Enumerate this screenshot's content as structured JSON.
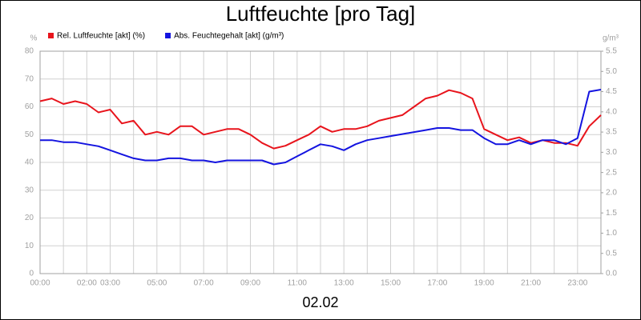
{
  "chart_data": {
    "type": "line",
    "title": "Luftfeuchte [pro Tag]",
    "subtitle": "02.02",
    "y_unit": "%",
    "y2_unit": "g/m³",
    "x": [
      0,
      0.5,
      1,
      1.5,
      2,
      2.5,
      3,
      3.5,
      4,
      4.5,
      5,
      5.5,
      6,
      6.5,
      7,
      7.5,
      8,
      8.5,
      9,
      9.5,
      10,
      10.5,
      11,
      11.5,
      12,
      12.5,
      13,
      13.5,
      14,
      14.5,
      15,
      15.5,
      16,
      16.5,
      17,
      17.5,
      18,
      18.5,
      19,
      19.5,
      20,
      20.5,
      21,
      21.5,
      22,
      22.5,
      23,
      23.5,
      24
    ],
    "series": [
      {
        "name": "Rel. Luftfeuchte [akt] (%)",
        "color": "#e8141c",
        "values": [
          62,
          63,
          61,
          62,
          61,
          58,
          59,
          54,
          55,
          50,
          51,
          50,
          53,
          53,
          50,
          51,
          52,
          52,
          50,
          47,
          45,
          46,
          48,
          50,
          53,
          51,
          52,
          52,
          53,
          55,
          56,
          57,
          60,
          63,
          64,
          66,
          65,
          63,
          52,
          50,
          48,
          49,
          47,
          48,
          47,
          47,
          46,
          53,
          57
        ]
      },
      {
        "name": "Abs. Feuchtegehalt [akt] (g/m³)",
        "color": "#1414e0",
        "axis": "y2",
        "values": [
          3.3,
          3.3,
          3.25,
          3.25,
          3.2,
          3.15,
          3.05,
          2.95,
          2.85,
          2.8,
          2.8,
          2.85,
          2.85,
          2.8,
          2.8,
          2.75,
          2.8,
          2.8,
          2.8,
          2.8,
          2.7,
          2.75,
          2.9,
          3.05,
          3.2,
          3.15,
          3.05,
          3.2,
          3.3,
          3.35,
          3.4,
          3.45,
          3.5,
          3.55,
          3.6,
          3.6,
          3.55,
          3.55,
          3.35,
          3.2,
          3.2,
          3.3,
          3.2,
          3.3,
          3.3,
          3.2,
          3.35,
          4.5,
          4.55
        ]
      }
    ],
    "xlim": [
      0,
      24
    ],
    "xticks": [
      {
        "value": 0,
        "label": "00:00"
      },
      {
        "value": 1,
        "label": null
      },
      {
        "value": 2,
        "label": "02:00"
      },
      {
        "value": 3,
        "label": "03:00"
      },
      {
        "value": 4,
        "label": null
      },
      {
        "value": 5,
        "label": "05:00"
      },
      {
        "value": 6,
        "label": null
      },
      {
        "value": 7,
        "label": "07:00"
      },
      {
        "value": 8,
        "label": null
      },
      {
        "value": 9,
        "label": "09:00"
      },
      {
        "value": 10,
        "label": null
      },
      {
        "value": 11,
        "label": "11:00"
      },
      {
        "value": 12,
        "label": null
      },
      {
        "value": 13,
        "label": "13:00"
      },
      {
        "value": 14,
        "label": null
      },
      {
        "value": 15,
        "label": "15:00"
      },
      {
        "value": 16,
        "label": null
      },
      {
        "value": 17,
        "label": "17:00"
      },
      {
        "value": 18,
        "label": null
      },
      {
        "value": 19,
        "label": "19:00"
      },
      {
        "value": 20,
        "label": null
      },
      {
        "value": 21,
        "label": "21:00"
      },
      {
        "value": 22,
        "label": null
      },
      {
        "value": 23,
        "label": "23:00"
      },
      {
        "value": 24,
        "label": null
      }
    ],
    "ylim": [
      0,
      80
    ],
    "yticks": [
      0,
      10,
      20,
      30,
      40,
      50,
      60,
      70,
      80
    ],
    "y2lim": [
      0,
      5.5
    ],
    "y2ticks": [
      {
        "value": 0,
        "label": "0.0"
      },
      0.5,
      {
        "value": 1,
        "label": "1.0"
      },
      1.5,
      {
        "value": 2,
        "label": "2.0"
      },
      2.5,
      {
        "value": 3,
        "label": "3.0"
      },
      3.5,
      {
        "value": 4,
        "label": "4.0"
      },
      4.5,
      {
        "value": 5,
        "label": "5.0"
      },
      5.5
    ],
    "grid": true
  }
}
